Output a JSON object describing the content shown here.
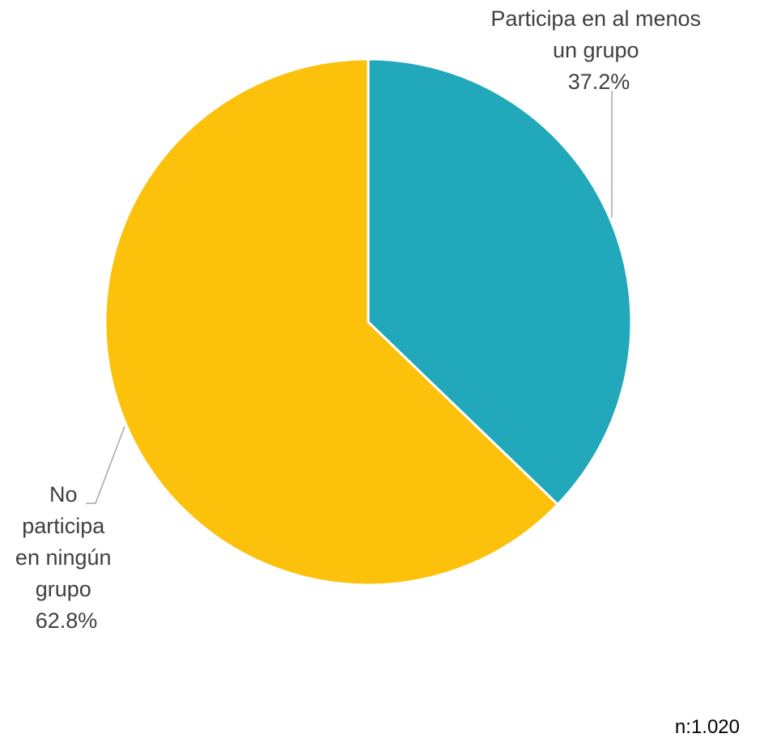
{
  "chart_data": {
    "type": "pie",
    "start_angle_deg": 0,
    "direction": "clockwise",
    "slices": [
      {
        "label": "Participa en al menos un grupo",
        "label_lines": [
          "Participa en al menos",
          "un grupo"
        ],
        "value": 37.2,
        "value_label": "37.2%",
        "color": "#21A8BA"
      },
      {
        "label": "No participa en ningún grupo",
        "label_lines": [
          "No",
          "participa",
          "en ningún",
          "grupo"
        ],
        "value": 62.8,
        "value_label": "62.8%",
        "color": "#FCC10A"
      }
    ],
    "legend": "none",
    "data_labels": "outside-with-leader-lines"
  },
  "footer": {
    "sample_size": "n:1.020"
  }
}
